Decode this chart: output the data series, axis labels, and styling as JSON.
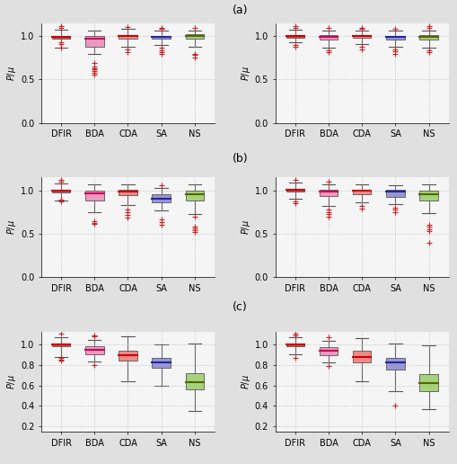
{
  "categories": [
    "DFIR",
    "BDA",
    "CDA",
    "SA",
    "NS"
  ],
  "subplot_labels": [
    "(a)",
    "(b)",
    "(c)"
  ],
  "plots": [
    {
      "row": 0,
      "col": 0,
      "ylim": [
        0,
        1.15
      ],
      "yticks": [
        0,
        0.5,
        1.0
      ],
      "boxes": [
        {
          "q1": 0.975,
          "med": 0.995,
          "q3": 1.005,
          "whisk_lo": 0.87,
          "whisk_hi": 1.08,
          "fliers_lo": [
            0.93,
            0.91,
            0.87
          ],
          "fliers_hi": [
            1.1,
            1.12
          ]
        },
        {
          "q1": 0.88,
          "med": 0.975,
          "q3": 1.005,
          "whisk_lo": 0.8,
          "whisk_hi": 1.06,
          "fliers_lo": [
            0.62,
            0.56,
            0.58,
            0.6,
            0.63,
            0.65,
            0.69
          ],
          "fliers_hi": []
        },
        {
          "q1": 0.975,
          "med": 1.0,
          "q3": 1.01,
          "whisk_lo": 0.88,
          "whisk_hi": 1.09,
          "fliers_lo": [
            0.85,
            0.82
          ],
          "fliers_hi": [
            1.11
          ]
        },
        {
          "q1": 0.975,
          "med": 0.995,
          "q3": 1.005,
          "whisk_lo": 0.9,
          "whisk_hi": 1.07,
          "fliers_lo": [
            0.87,
            0.84,
            0.82,
            0.8
          ],
          "fliers_hi": [
            1.09,
            1.1
          ]
        },
        {
          "q1": 0.975,
          "med": 1.0,
          "q3": 1.02,
          "whisk_lo": 0.88,
          "whisk_hi": 1.07,
          "fliers_lo": [
            0.75,
            0.78,
            0.8
          ],
          "fliers_hi": [
            1.1
          ]
        }
      ]
    },
    {
      "row": 0,
      "col": 1,
      "ylim": [
        0,
        1.15
      ],
      "yticks": [
        0,
        0.5,
        1.0
      ],
      "boxes": [
        {
          "q1": 0.985,
          "med": 1.0,
          "q3": 1.01,
          "whisk_lo": 0.93,
          "whisk_hi": 1.08,
          "fliers_lo": [
            0.9,
            0.88
          ],
          "fliers_hi": [
            1.1,
            1.12
          ]
        },
        {
          "q1": 0.965,
          "med": 0.995,
          "q3": 1.01,
          "whisk_lo": 0.87,
          "whisk_hi": 1.06,
          "fliers_lo": [
            0.84,
            0.82
          ],
          "fliers_hi": [
            1.1
          ]
        },
        {
          "q1": 0.985,
          "med": 1.0,
          "q3": 1.01,
          "whisk_lo": 0.91,
          "whisk_hi": 1.06,
          "fliers_lo": [
            0.88,
            0.85
          ],
          "fliers_hi": [
            1.09,
            1.1
          ]
        },
        {
          "q1": 0.96,
          "med": 0.99,
          "q3": 1.005,
          "whisk_lo": 0.88,
          "whisk_hi": 1.06,
          "fliers_lo": [
            0.85,
            0.83,
            0.8
          ],
          "fliers_hi": [
            1.09
          ]
        },
        {
          "q1": 0.965,
          "med": 0.995,
          "q3": 1.015,
          "whisk_lo": 0.87,
          "whisk_hi": 1.07,
          "fliers_lo": [
            0.84,
            0.82
          ],
          "fliers_hi": [
            1.1,
            1.12
          ]
        }
      ]
    },
    {
      "row": 1,
      "col": 0,
      "ylim": [
        0,
        1.15
      ],
      "yticks": [
        0,
        0.5,
        1.0
      ],
      "boxes": [
        {
          "q1": 0.975,
          "med": 0.995,
          "q3": 1.005,
          "whisk_lo": 0.88,
          "whisk_hi": 1.08,
          "fliers_lo": [
            0.9,
            0.87
          ],
          "fliers_hi": [
            1.1,
            1.12
          ]
        },
        {
          "q1": 0.88,
          "med": 0.965,
          "q3": 1.0,
          "whisk_lo": 0.75,
          "whisk_hi": 1.07,
          "fliers_lo": [
            0.61,
            0.63,
            0.65
          ],
          "fliers_hi": []
        },
        {
          "q1": 0.95,
          "med": 0.985,
          "q3": 1.005,
          "whisk_lo": 0.83,
          "whisk_hi": 1.07,
          "fliers_lo": [
            0.78,
            0.75,
            0.72,
            0.69
          ],
          "fliers_hi": []
        },
        {
          "q1": 0.86,
          "med": 0.91,
          "q3": 0.96,
          "whisk_lo": 0.77,
          "whisk_hi": 1.03,
          "fliers_lo": [
            0.67,
            0.64,
            0.6
          ],
          "fliers_hi": [
            1.06
          ]
        },
        {
          "q1": 0.88,
          "med": 0.96,
          "q3": 1.0,
          "whisk_lo": 0.73,
          "whisk_hi": 1.07,
          "fliers_lo": [
            0.52,
            0.54,
            0.56,
            0.58,
            0.7
          ],
          "fliers_hi": []
        }
      ]
    },
    {
      "row": 1,
      "col": 1,
      "ylim": [
        0,
        1.15
      ],
      "yticks": [
        0,
        0.5,
        1.0
      ],
      "boxes": [
        {
          "q1": 0.985,
          "med": 1.005,
          "q3": 1.015,
          "whisk_lo": 0.91,
          "whisk_hi": 1.09,
          "fliers_lo": [
            0.87,
            0.85
          ],
          "fliers_hi": [
            1.12
          ]
        },
        {
          "q1": 0.94,
          "med": 0.99,
          "q3": 1.01,
          "whisk_lo": 0.82,
          "whisk_hi": 1.07,
          "fliers_lo": [
            0.78,
            0.75,
            0.73,
            0.7
          ],
          "fliers_hi": [
            1.1
          ]
        },
        {
          "q1": 0.96,
          "med": 0.995,
          "q3": 1.01,
          "whisk_lo": 0.86,
          "whisk_hi": 1.07,
          "fliers_lo": [
            0.82,
            0.79
          ],
          "fliers_hi": []
        },
        {
          "q1": 0.93,
          "med": 0.985,
          "q3": 1.005,
          "whisk_lo": 0.84,
          "whisk_hi": 1.06,
          "fliers_lo": [
            0.8,
            0.78,
            0.75
          ],
          "fliers_hi": []
        },
        {
          "q1": 0.88,
          "med": 0.96,
          "q3": 1.0,
          "whisk_lo": 0.74,
          "whisk_hi": 1.07,
          "fliers_lo": [
            0.53,
            0.55,
            0.58,
            0.4,
            0.6
          ],
          "fliers_hi": []
        }
      ]
    },
    {
      "row": 2,
      "col": 0,
      "ylim": [
        0.15,
        1.12
      ],
      "yticks": [
        0.2,
        0.4,
        0.6,
        0.8,
        1.0
      ],
      "boxes": [
        {
          "q1": 0.985,
          "med": 1.0,
          "q3": 1.01,
          "whisk_lo": 0.88,
          "whisk_hi": 1.07,
          "fliers_lo": [
            0.87,
            0.85,
            0.84
          ],
          "fliers_hi": [
            1.1
          ]
        },
        {
          "q1": 0.9,
          "med": 0.95,
          "q3": 0.98,
          "whisk_lo": 0.83,
          "whisk_hi": 1.04,
          "fliers_lo": [
            0.8
          ],
          "fliers_hi": [
            1.09,
            1.08
          ]
        },
        {
          "q1": 0.84,
          "med": 0.895,
          "q3": 0.94,
          "whisk_lo": 0.64,
          "whisk_hi": 1.08,
          "fliers_lo": [],
          "fliers_hi": []
        },
        {
          "q1": 0.77,
          "med": 0.82,
          "q3": 0.87,
          "whisk_lo": 0.6,
          "whisk_hi": 1.0,
          "fliers_lo": [],
          "fliers_hi": []
        },
        {
          "q1": 0.56,
          "med": 0.635,
          "q3": 0.72,
          "whisk_lo": 0.35,
          "whisk_hi": 1.01,
          "fliers_lo": [],
          "fliers_hi": []
        }
      ]
    },
    {
      "row": 2,
      "col": 1,
      "ylim": [
        0.15,
        1.12
      ],
      "yticks": [
        0.2,
        0.4,
        0.6,
        0.8,
        1.0
      ],
      "boxes": [
        {
          "q1": 0.985,
          "med": 1.0,
          "q3": 1.01,
          "whisk_lo": 0.9,
          "whisk_hi": 1.07,
          "fliers_lo": [
            0.87
          ],
          "fliers_hi": [
            1.1,
            1.09
          ]
        },
        {
          "q1": 0.89,
          "med": 0.94,
          "q3": 0.97,
          "whisk_lo": 0.82,
          "whisk_hi": 1.03,
          "fliers_lo": [
            0.79
          ],
          "fliers_hi": [
            1.07
          ]
        },
        {
          "q1": 0.82,
          "med": 0.88,
          "q3": 0.935,
          "whisk_lo": 0.64,
          "whisk_hi": 1.06,
          "fliers_lo": [],
          "fliers_hi": []
        },
        {
          "q1": 0.75,
          "med": 0.82,
          "q3": 0.87,
          "whisk_lo": 0.54,
          "whisk_hi": 1.01,
          "fliers_lo": [
            0.4
          ],
          "fliers_hi": []
        },
        {
          "q1": 0.54,
          "med": 0.625,
          "q3": 0.71,
          "whisk_lo": 0.37,
          "whisk_hi": 0.99,
          "fliers_lo": [],
          "fliers_hi": []
        }
      ]
    }
  ],
  "face_colors": [
    "#cc3333",
    "#ee88bb",
    "#ee7777",
    "#8888cc",
    "#99cc66"
  ],
  "median_colors": [
    "#cc0000",
    "#cc0055",
    "#cc0000",
    "#2222aa",
    "#556600"
  ],
  "background": "#f5f5f5",
  "grid_color": "#aaaaaa",
  "figure_bg": "#e0e0e0"
}
